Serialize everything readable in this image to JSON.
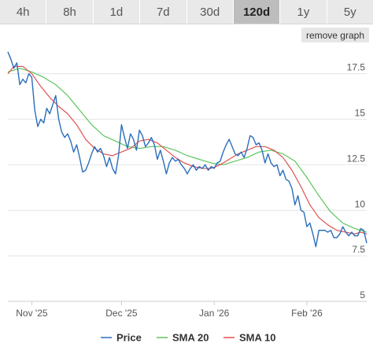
{
  "tabs": [
    {
      "label": "4h",
      "active": false
    },
    {
      "label": "8h",
      "active": false
    },
    {
      "label": "1d",
      "active": false
    },
    {
      "label": "7d",
      "active": false
    },
    {
      "label": "30d",
      "active": false
    },
    {
      "label": "120d",
      "active": true
    },
    {
      "label": "1y",
      "active": false
    },
    {
      "label": "5y",
      "active": false
    }
  ],
  "remove_graph_label": "remove graph",
  "colors": {
    "price": "#2a6ebb",
    "sma20": "#5cc55c",
    "sma10": "#e05050",
    "grid": "#e4e4e4",
    "axis": "#cccccc"
  },
  "chart_data": {
    "type": "line",
    "title": "",
    "xlabel": "",
    "ylabel": "",
    "x_range": [
      "2025-10-24",
      "2026-02-21"
    ],
    "ylim": [
      5,
      19
    ],
    "y_ticks": [
      5,
      7.5,
      10,
      12.5,
      15,
      17.5
    ],
    "y_tick_labels": [
      "5",
      "7.5",
      "10",
      "12.5",
      "15",
      "17.5"
    ],
    "x_ticks": [
      "2025-11-01",
      "2025-12-01",
      "2026-01-01",
      "2026-02-01"
    ],
    "x_tick_labels": [
      "Nov '25",
      "Dec '25",
      "Jan '26",
      "Feb '26"
    ],
    "grid": true,
    "legend_position": "bottom",
    "series": [
      {
        "name": "Price",
        "color_key": "price",
        "points": [
          [
            "2025-10-24",
            18.7
          ],
          [
            "2025-10-25",
            18.3
          ],
          [
            "2025-10-26",
            17.8
          ],
          [
            "2025-10-27",
            18.1
          ],
          [
            "2025-10-28",
            16.9
          ],
          [
            "2025-10-29",
            17.2
          ],
          [
            "2025-10-30",
            17.0
          ],
          [
            "2025-10-31",
            17.5
          ],
          [
            "2025-11-01",
            17.3
          ],
          [
            "2025-11-02",
            15.5
          ],
          [
            "2025-11-03",
            14.6
          ],
          [
            "2025-11-04",
            15.0
          ],
          [
            "2025-11-05",
            14.8
          ],
          [
            "2025-11-06",
            15.6
          ],
          [
            "2025-11-07",
            15.3
          ],
          [
            "2025-11-08",
            15.8
          ],
          [
            "2025-11-09",
            16.3
          ],
          [
            "2025-11-10",
            15.0
          ],
          [
            "2025-11-11",
            14.3
          ],
          [
            "2025-11-12",
            14.0
          ],
          [
            "2025-11-13",
            14.2
          ],
          [
            "2025-11-14",
            13.8
          ],
          [
            "2025-11-15",
            13.2
          ],
          [
            "2025-11-16",
            13.6
          ],
          [
            "2025-11-17",
            12.9
          ],
          [
            "2025-11-18",
            12.1
          ],
          [
            "2025-11-19",
            12.2
          ],
          [
            "2025-11-20",
            12.6
          ],
          [
            "2025-11-21",
            13.1
          ],
          [
            "2025-11-22",
            13.5
          ],
          [
            "2025-11-23",
            13.2
          ],
          [
            "2025-11-24",
            13.4
          ],
          [
            "2025-11-25",
            13.0
          ],
          [
            "2025-11-26",
            12.4
          ],
          [
            "2025-11-27",
            12.9
          ],
          [
            "2025-11-28",
            12.3
          ],
          [
            "2025-11-29",
            12.0
          ],
          [
            "2025-11-30",
            13.0
          ],
          [
            "2025-12-01",
            14.7
          ],
          [
            "2025-12-02",
            14.0
          ],
          [
            "2025-12-03",
            13.4
          ],
          [
            "2025-12-04",
            14.2
          ],
          [
            "2025-12-05",
            13.9
          ],
          [
            "2025-12-06",
            13.3
          ],
          [
            "2025-12-07",
            14.4
          ],
          [
            "2025-12-08",
            14.1
          ],
          [
            "2025-12-09",
            13.5
          ],
          [
            "2025-12-10",
            13.7
          ],
          [
            "2025-12-11",
            14.0
          ],
          [
            "2025-12-12",
            13.6
          ],
          [
            "2025-12-13",
            12.8
          ],
          [
            "2025-12-14",
            13.3
          ],
          [
            "2025-12-15",
            12.7
          ],
          [
            "2025-12-16",
            12.0
          ],
          [
            "2025-12-17",
            12.6
          ],
          [
            "2025-12-18",
            12.9
          ],
          [
            "2025-12-19",
            12.7
          ],
          [
            "2025-12-20",
            12.8
          ],
          [
            "2025-12-21",
            12.5
          ],
          [
            "2025-12-22",
            12.3
          ],
          [
            "2025-12-23",
            12.0
          ],
          [
            "2025-12-24",
            12.3
          ],
          [
            "2025-12-25",
            12.5
          ],
          [
            "2025-12-26",
            12.2
          ],
          [
            "2025-12-27",
            12.4
          ],
          [
            "2025-12-28",
            12.3
          ],
          [
            "2025-12-29",
            12.5
          ],
          [
            "2025-12-30",
            12.2
          ],
          [
            "2025-12-31",
            12.4
          ],
          [
            "2026-01-01",
            12.3
          ],
          [
            "2026-01-02",
            12.6
          ],
          [
            "2026-01-03",
            12.7
          ],
          [
            "2026-01-04",
            13.2
          ],
          [
            "2026-01-05",
            13.6
          ],
          [
            "2026-01-06",
            13.9
          ],
          [
            "2026-01-07",
            13.5
          ],
          [
            "2026-01-08",
            13.1
          ],
          [
            "2026-01-09",
            13.0
          ],
          [
            "2026-01-10",
            13.2
          ],
          [
            "2026-01-11",
            12.9
          ],
          [
            "2026-01-12",
            13.4
          ],
          [
            "2026-01-13",
            14.1
          ],
          [
            "2026-01-14",
            14.0
          ],
          [
            "2026-01-15",
            13.6
          ],
          [
            "2026-01-16",
            13.7
          ],
          [
            "2026-01-17",
            13.3
          ],
          [
            "2026-01-18",
            12.6
          ],
          [
            "2026-01-19",
            13.1
          ],
          [
            "2026-01-20",
            12.6
          ],
          [
            "2026-01-21",
            12.4
          ],
          [
            "2026-01-22",
            12.5
          ],
          [
            "2026-01-23",
            11.9
          ],
          [
            "2026-01-24",
            12.2
          ],
          [
            "2026-01-25",
            11.7
          ],
          [
            "2026-01-26",
            11.6
          ],
          [
            "2026-01-27",
            11.2
          ],
          [
            "2026-01-28",
            10.3
          ],
          [
            "2026-01-29",
            10.8
          ],
          [
            "2026-01-30",
            10.0
          ],
          [
            "2026-01-31",
            9.9
          ],
          [
            "2026-02-01",
            9.1
          ],
          [
            "2026-02-02",
            9.3
          ],
          [
            "2026-02-03",
            8.7
          ],
          [
            "2026-02-04",
            8.0
          ],
          [
            "2026-02-05",
            8.9
          ],
          [
            "2026-02-06",
            8.9
          ],
          [
            "2026-02-07",
            8.9
          ],
          [
            "2026-02-08",
            8.8
          ],
          [
            "2026-02-09",
            8.9
          ],
          [
            "2026-02-10",
            8.5
          ],
          [
            "2026-02-11",
            8.5
          ],
          [
            "2026-02-12",
            8.7
          ],
          [
            "2026-02-13",
            9.1
          ],
          [
            "2026-02-14",
            8.8
          ],
          [
            "2026-02-15",
            8.6
          ],
          [
            "2026-02-16",
            8.8
          ],
          [
            "2026-02-17",
            8.6
          ],
          [
            "2026-02-18",
            8.6
          ],
          [
            "2026-02-19",
            9.0
          ],
          [
            "2026-02-20",
            8.9
          ],
          [
            "2026-02-21",
            8.2
          ]
        ]
      },
      {
        "name": "SMA 20",
        "color_key": "sma20",
        "points": [
          [
            "2025-10-24",
            17.6
          ],
          [
            "2025-10-28",
            17.8
          ],
          [
            "2025-11-01",
            17.6
          ],
          [
            "2025-11-05",
            17.3
          ],
          [
            "2025-11-09",
            16.9
          ],
          [
            "2025-11-13",
            16.3
          ],
          [
            "2025-11-17",
            15.5
          ],
          [
            "2025-11-21",
            14.7
          ],
          [
            "2025-11-25",
            14.1
          ],
          [
            "2025-11-29",
            13.8
          ],
          [
            "2025-12-03",
            13.5
          ],
          [
            "2025-12-07",
            13.4
          ],
          [
            "2025-12-11",
            13.5
          ],
          [
            "2025-12-15",
            13.5
          ],
          [
            "2025-12-19",
            13.3
          ],
          [
            "2025-12-23",
            13.0
          ],
          [
            "2025-12-27",
            12.8
          ],
          [
            "2025-12-31",
            12.6
          ],
          [
            "2026-01-04",
            12.5
          ],
          [
            "2026-01-08",
            12.7
          ],
          [
            "2026-01-12",
            12.9
          ],
          [
            "2026-01-16",
            13.2
          ],
          [
            "2026-01-20",
            13.3
          ],
          [
            "2026-01-24",
            13.1
          ],
          [
            "2026-01-28",
            12.7
          ],
          [
            "2026-02-01",
            11.8
          ],
          [
            "2026-02-05",
            10.8
          ],
          [
            "2026-02-09",
            9.9
          ],
          [
            "2026-02-13",
            9.3
          ],
          [
            "2026-02-17",
            9.0
          ],
          [
            "2026-02-19",
            8.9
          ],
          [
            "2026-02-21",
            8.8
          ]
        ]
      },
      {
        "name": "SMA 10",
        "color_key": "sma10",
        "points": [
          [
            "2025-10-24",
            17.5
          ],
          [
            "2025-10-26",
            17.9
          ],
          [
            "2025-10-29",
            17.9
          ],
          [
            "2025-11-01",
            17.5
          ],
          [
            "2025-11-04",
            16.8
          ],
          [
            "2025-11-07",
            16.2
          ],
          [
            "2025-11-10",
            15.7
          ],
          [
            "2025-11-13",
            15.3
          ],
          [
            "2025-11-16",
            14.7
          ],
          [
            "2025-11-19",
            13.9
          ],
          [
            "2025-11-22",
            13.4
          ],
          [
            "2025-11-25",
            13.1
          ],
          [
            "2025-11-28",
            13.0
          ],
          [
            "2025-12-01",
            13.2
          ],
          [
            "2025-12-04",
            13.4
          ],
          [
            "2025-12-07",
            13.8
          ],
          [
            "2025-12-10",
            13.9
          ],
          [
            "2025-12-13",
            13.7
          ],
          [
            "2025-12-16",
            13.3
          ],
          [
            "2025-12-19",
            12.9
          ],
          [
            "2025-12-22",
            12.6
          ],
          [
            "2025-12-25",
            12.4
          ],
          [
            "2025-12-28",
            12.3
          ],
          [
            "2025-12-31",
            12.3
          ],
          [
            "2026-01-03",
            12.5
          ],
          [
            "2026-01-06",
            12.8
          ],
          [
            "2026-01-09",
            13.1
          ],
          [
            "2026-01-12",
            13.3
          ],
          [
            "2026-01-15",
            13.5
          ],
          [
            "2026-01-18",
            13.5
          ],
          [
            "2026-01-21",
            13.3
          ],
          [
            "2026-01-24",
            12.9
          ],
          [
            "2026-01-27",
            12.2
          ],
          [
            "2026-01-30",
            11.3
          ],
          [
            "2026-02-02",
            10.3
          ],
          [
            "2026-02-05",
            9.6
          ],
          [
            "2026-02-08",
            9.2
          ],
          [
            "2026-02-11",
            8.9
          ],
          [
            "2026-02-14",
            8.8
          ],
          [
            "2026-02-17",
            8.7
          ],
          [
            "2026-02-19",
            8.8
          ],
          [
            "2026-02-21",
            8.7
          ]
        ]
      }
    ]
  }
}
